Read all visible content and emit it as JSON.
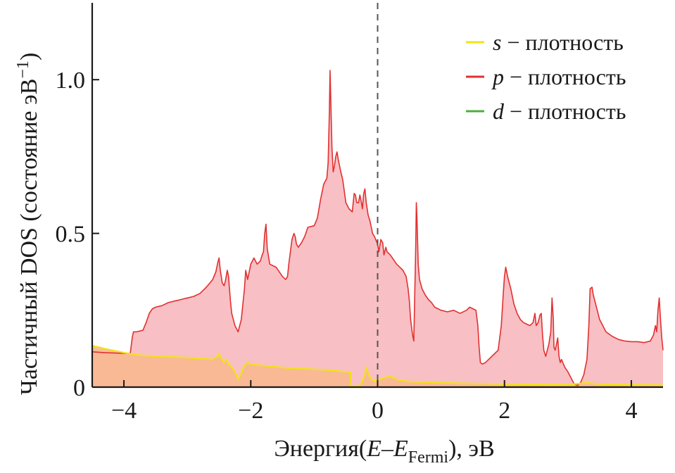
{
  "chart_data": {
    "type": "area",
    "xlabel": {
      "prefix": "Энергия(",
      "var": "E",
      "dash": "–",
      "var2": "E",
      "sub": "Fermi",
      "suffix": "), эВ"
    },
    "ylabel": {
      "main": "Частичный DOS (состояние эВ",
      "sup": "−1",
      "close": ")"
    },
    "xlim": [
      -4.5,
      4.5
    ],
    "ylim": [
      0,
      1.25
    ],
    "x_ticks": [
      -4,
      -2,
      0,
      2,
      4
    ],
    "x_tick_labels": [
      "−4",
      "−2",
      "0",
      "2",
      "4"
    ],
    "y_ticks": [
      0,
      0.5,
      1.0
    ],
    "y_tick_labels": [
      "0",
      "0.5",
      "1.0"
    ],
    "fermi_line_x": 0,
    "grid": false,
    "legend_placement": "top-right",
    "series": [
      {
        "name": "s",
        "legend_suffix": " − плотность",
        "color": "#f2e21a",
        "fill": "#f9b98f",
        "points": [
          [
            -4.5,
            0.135
          ],
          [
            -4.3,
            0.125
          ],
          [
            -4.0,
            0.112
          ],
          [
            -3.8,
            0.105
          ],
          [
            -3.5,
            0.1
          ],
          [
            -3.2,
            0.098
          ],
          [
            -3.0,
            0.096
          ],
          [
            -2.8,
            0.093
          ],
          [
            -2.6,
            0.09
          ],
          [
            -2.52,
            0.1
          ],
          [
            -2.5,
            0.11
          ],
          [
            -2.47,
            0.095
          ],
          [
            -2.42,
            0.08
          ],
          [
            -2.38,
            0.09
          ],
          [
            -2.35,
            0.075
          ],
          [
            -2.3,
            0.065
          ],
          [
            -2.25,
            0.05
          ],
          [
            -2.2,
            0.025
          ],
          [
            -2.15,
            0.045
          ],
          [
            -2.1,
            0.07
          ],
          [
            -2.05,
            0.08
          ],
          [
            -2.0,
            0.075
          ],
          [
            -1.9,
            0.072
          ],
          [
            -1.8,
            0.07
          ],
          [
            -1.6,
            0.066
          ],
          [
            -1.4,
            0.062
          ],
          [
            -1.2,
            0.06
          ],
          [
            -1.0,
            0.058
          ],
          [
            -0.8,
            0.056
          ],
          [
            -0.6,
            0.052
          ],
          [
            -0.5,
            0.05
          ],
          [
            -0.43,
            0.048
          ],
          [
            -0.42,
            0.005
          ],
          [
            -0.3,
            0.004
          ],
          [
            -0.25,
            0.015
          ],
          [
            -0.2,
            0.04
          ],
          [
            -0.18,
            0.065
          ],
          [
            -0.15,
            0.045
          ],
          [
            -0.1,
            0.025
          ],
          [
            -0.05,
            0.02
          ],
          [
            0.0,
            0.022
          ],
          [
            0.1,
            0.03
          ],
          [
            0.2,
            0.035
          ],
          [
            0.3,
            0.025
          ],
          [
            0.5,
            0.018
          ],
          [
            0.8,
            0.016
          ],
          [
            1.0,
            0.014
          ],
          [
            1.5,
            0.012
          ],
          [
            2.0,
            0.01
          ],
          [
            2.5,
            0.009
          ],
          [
            3.0,
            0.008
          ],
          [
            3.3,
            0.014
          ],
          [
            3.5,
            0.01
          ],
          [
            4.0,
            0.008
          ],
          [
            4.5,
            0.006
          ]
        ]
      },
      {
        "name": "p",
        "legend_suffix": " − плотность",
        "color": "#e23030",
        "fill": "#f8bfc4",
        "points": [
          [
            -4.5,
            0.115
          ],
          [
            -4.3,
            0.112
          ],
          [
            -4.0,
            0.11
          ],
          [
            -3.9,
            0.11
          ],
          [
            -3.87,
            0.16
          ],
          [
            -3.85,
            0.18
          ],
          [
            -3.8,
            0.18
          ],
          [
            -3.7,
            0.185
          ],
          [
            -3.65,
            0.21
          ],
          [
            -3.6,
            0.24
          ],
          [
            -3.55,
            0.255
          ],
          [
            -3.5,
            0.26
          ],
          [
            -3.4,
            0.265
          ],
          [
            -3.3,
            0.275
          ],
          [
            -3.2,
            0.28
          ],
          [
            -3.1,
            0.285
          ],
          [
            -3.0,
            0.29
          ],
          [
            -2.9,
            0.295
          ],
          [
            -2.8,
            0.305
          ],
          [
            -2.7,
            0.325
          ],
          [
            -2.6,
            0.35
          ],
          [
            -2.55,
            0.375
          ],
          [
            -2.52,
            0.405
          ],
          [
            -2.5,
            0.42
          ],
          [
            -2.48,
            0.38
          ],
          [
            -2.45,
            0.34
          ],
          [
            -2.42,
            0.33
          ],
          [
            -2.4,
            0.345
          ],
          [
            -2.37,
            0.38
          ],
          [
            -2.35,
            0.36
          ],
          [
            -2.32,
            0.28
          ],
          [
            -2.3,
            0.24
          ],
          [
            -2.25,
            0.2
          ],
          [
            -2.2,
            0.18
          ],
          [
            -2.15,
            0.22
          ],
          [
            -2.1,
            0.32
          ],
          [
            -2.08,
            0.38
          ],
          [
            -2.05,
            0.35
          ],
          [
            -2.0,
            0.4
          ],
          [
            -1.95,
            0.42
          ],
          [
            -1.9,
            0.4
          ],
          [
            -1.85,
            0.41
          ],
          [
            -1.82,
            0.43
          ],
          [
            -1.8,
            0.44
          ],
          [
            -1.78,
            0.5
          ],
          [
            -1.76,
            0.53
          ],
          [
            -1.74,
            0.45
          ],
          [
            -1.7,
            0.4
          ],
          [
            -1.65,
            0.395
          ],
          [
            -1.6,
            0.39
          ],
          [
            -1.55,
            0.375
          ],
          [
            -1.5,
            0.36
          ],
          [
            -1.45,
            0.35
          ],
          [
            -1.42,
            0.36
          ],
          [
            -1.4,
            0.4
          ],
          [
            -1.35,
            0.48
          ],
          [
            -1.32,
            0.5
          ],
          [
            -1.3,
            0.49
          ],
          [
            -1.28,
            0.465
          ],
          [
            -1.25,
            0.455
          ],
          [
            -1.2,
            0.47
          ],
          [
            -1.15,
            0.49
          ],
          [
            -1.1,
            0.52
          ],
          [
            -1.0,
            0.525
          ],
          [
            -0.95,
            0.55
          ],
          [
            -0.9,
            0.61
          ],
          [
            -0.85,
            0.66
          ],
          [
            -0.8,
            0.68
          ],
          [
            -0.78,
            0.73
          ],
          [
            -0.76,
            0.9
          ],
          [
            -0.75,
            1.03
          ],
          [
            -0.74,
            0.95
          ],
          [
            -0.72,
            0.78
          ],
          [
            -0.7,
            0.7
          ],
          [
            -0.68,
            0.72
          ],
          [
            -0.66,
            0.75
          ],
          [
            -0.64,
            0.765
          ],
          [
            -0.62,
            0.74
          ],
          [
            -0.6,
            0.72
          ],
          [
            -0.58,
            0.7
          ],
          [
            -0.55,
            0.675
          ],
          [
            -0.52,
            0.63
          ],
          [
            -0.5,
            0.6
          ],
          [
            -0.45,
            0.58
          ],
          [
            -0.4,
            0.57
          ],
          [
            -0.37,
            0.63
          ],
          [
            -0.35,
            0.625
          ],
          [
            -0.33,
            0.6
          ],
          [
            -0.3,
            0.6
          ],
          [
            -0.28,
            0.625
          ],
          [
            -0.26,
            0.605
          ],
          [
            -0.24,
            0.58
          ],
          [
            -0.22,
            0.63
          ],
          [
            -0.2,
            0.645
          ],
          [
            -0.18,
            0.6
          ],
          [
            -0.15,
            0.56
          ],
          [
            -0.12,
            0.54
          ],
          [
            -0.08,
            0.5
          ],
          [
            -0.05,
            0.49
          ],
          [
            -0.02,
            0.475
          ],
          [
            0.0,
            0.465
          ],
          [
            0.02,
            0.44
          ],
          [
            0.05,
            0.48
          ],
          [
            0.08,
            0.47
          ],
          [
            0.1,
            0.43
          ],
          [
            0.13,
            0.455
          ],
          [
            0.15,
            0.44
          ],
          [
            0.2,
            0.43
          ],
          [
            0.25,
            0.415
          ],
          [
            0.3,
            0.4
          ],
          [
            0.35,
            0.39
          ],
          [
            0.4,
            0.38
          ],
          [
            0.45,
            0.36
          ],
          [
            0.48,
            0.32
          ],
          [
            0.5,
            0.28
          ],
          [
            0.52,
            0.22
          ],
          [
            0.55,
            0.17
          ],
          [
            0.57,
            0.15
          ],
          [
            0.58,
            0.25
          ],
          [
            0.6,
            0.45
          ],
          [
            0.61,
            0.6
          ],
          [
            0.62,
            0.55
          ],
          [
            0.64,
            0.4
          ],
          [
            0.66,
            0.35
          ],
          [
            0.7,
            0.32
          ],
          [
            0.75,
            0.3
          ],
          [
            0.8,
            0.285
          ],
          [
            0.85,
            0.275
          ],
          [
            0.9,
            0.26
          ],
          [
            1.0,
            0.25
          ],
          [
            1.1,
            0.245
          ],
          [
            1.2,
            0.25
          ],
          [
            1.3,
            0.24
          ],
          [
            1.4,
            0.25
          ],
          [
            1.45,
            0.26
          ],
          [
            1.5,
            0.255
          ],
          [
            1.55,
            0.25
          ],
          [
            1.58,
            0.2
          ],
          [
            1.6,
            0.13
          ],
          [
            1.62,
            0.08
          ],
          [
            1.65,
            0.075
          ],
          [
            1.7,
            0.08
          ],
          [
            1.75,
            0.09
          ],
          [
            1.8,
            0.1
          ],
          [
            1.85,
            0.11
          ],
          [
            1.9,
            0.12
          ],
          [
            1.95,
            0.2
          ],
          [
            1.98,
            0.3
          ],
          [
            2.0,
            0.36
          ],
          [
            2.02,
            0.39
          ],
          [
            2.05,
            0.36
          ],
          [
            2.1,
            0.32
          ],
          [
            2.15,
            0.27
          ],
          [
            2.2,
            0.24
          ],
          [
            2.25,
            0.22
          ],
          [
            2.3,
            0.21
          ],
          [
            2.35,
            0.205
          ],
          [
            2.4,
            0.2
          ],
          [
            2.45,
            0.21
          ],
          [
            2.48,
            0.24
          ],
          [
            2.5,
            0.2
          ],
          [
            2.53,
            0.21
          ],
          [
            2.56,
            0.235
          ],
          [
            2.58,
            0.24
          ],
          [
            2.6,
            0.17
          ],
          [
            2.62,
            0.12
          ],
          [
            2.65,
            0.1
          ],
          [
            2.7,
            0.14
          ],
          [
            2.73,
            0.18
          ],
          [
            2.75,
            0.29
          ],
          [
            2.77,
            0.22
          ],
          [
            2.78,
            0.13
          ],
          [
            2.8,
            0.12
          ],
          [
            2.82,
            0.14
          ],
          [
            2.84,
            0.16
          ],
          [
            2.86,
            0.1
          ],
          [
            2.88,
            0.08
          ],
          [
            2.9,
            0.09
          ],
          [
            2.95,
            0.065
          ],
          [
            3.0,
            0.05
          ],
          [
            3.05,
            0.03
          ],
          [
            3.1,
            0.01
          ],
          [
            3.15,
            0.005
          ],
          [
            3.2,
            0.015
          ],
          [
            3.25,
            0.04
          ],
          [
            3.3,
            0.09
          ],
          [
            3.33,
            0.2
          ],
          [
            3.35,
            0.32
          ],
          [
            3.38,
            0.325
          ],
          [
            3.4,
            0.3
          ],
          [
            3.45,
            0.26
          ],
          [
            3.5,
            0.22
          ],
          [
            3.55,
            0.2
          ],
          [
            3.6,
            0.18
          ],
          [
            3.7,
            0.165
          ],
          [
            3.8,
            0.155
          ],
          [
            3.9,
            0.15
          ],
          [
            4.0,
            0.148
          ],
          [
            4.1,
            0.148
          ],
          [
            4.2,
            0.145
          ],
          [
            4.3,
            0.15
          ],
          [
            4.35,
            0.17
          ],
          [
            4.38,
            0.2
          ],
          [
            4.4,
            0.18
          ],
          [
            4.42,
            0.25
          ],
          [
            4.44,
            0.29
          ],
          [
            4.46,
            0.22
          ],
          [
            4.48,
            0.16
          ],
          [
            4.5,
            0.12
          ]
        ]
      },
      {
        "name": "d",
        "legend_suffix": " − плотность",
        "color": "#4caf3c",
        "fill": "none",
        "points": []
      }
    ]
  }
}
